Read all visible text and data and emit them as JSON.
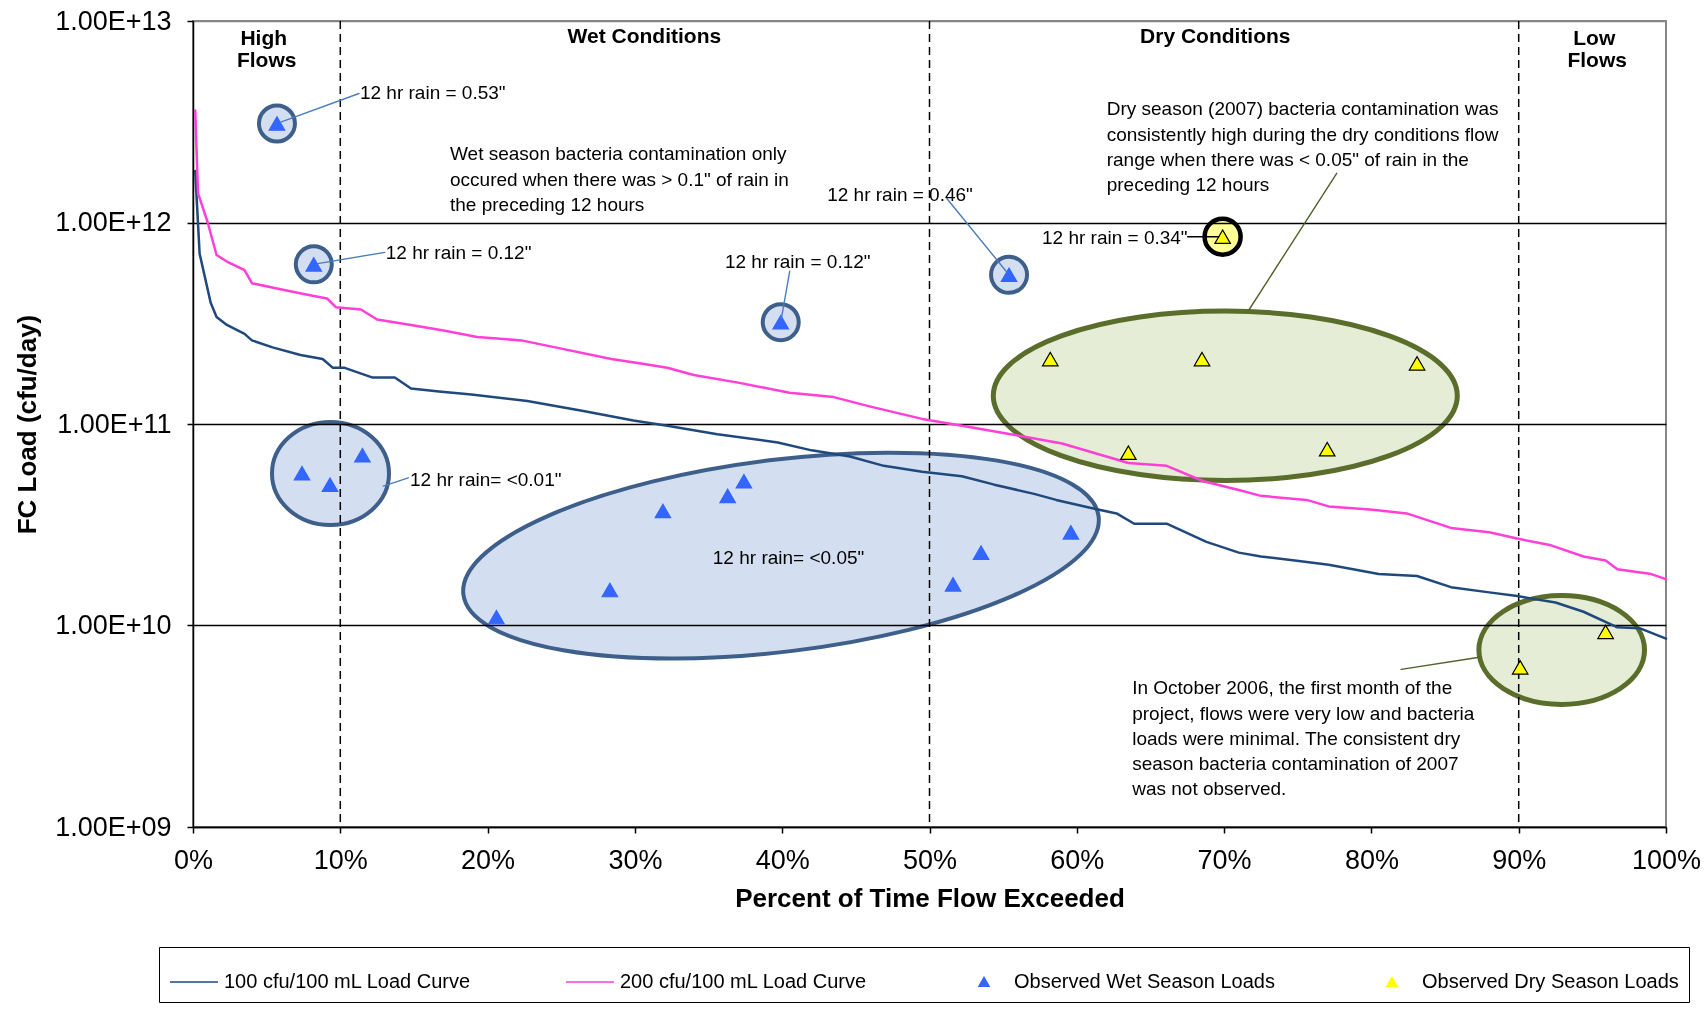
{
  "chart_data": {
    "type": "line",
    "xlabel": "Percent of Time Flow Exceeded",
    "ylabel": "FC Load (cfu/day)",
    "xlim": [
      0,
      100
    ],
    "xticks": [
      {
        "value": 0,
        "label": "0%"
      },
      {
        "value": 10,
        "label": "10%"
      },
      {
        "value": 20,
        "label": "20%"
      },
      {
        "value": 30,
        "label": "30%"
      },
      {
        "value": 40,
        "label": "40%"
      },
      {
        "value": 50,
        "label": "50%"
      },
      {
        "value": 60,
        "label": "60%"
      },
      {
        "value": 70,
        "label": "70%"
      },
      {
        "value": 80,
        "label": "80%"
      },
      {
        "value": 90,
        "label": "90%"
      },
      {
        "value": 100,
        "label": "100%"
      }
    ],
    "ylim": [
      1000000000.0,
      10000000000000.0
    ],
    "yticks": [
      {
        "value": 1000000000.0,
        "label": "1.00E+09"
      },
      {
        "value": 10000000000.0,
        "label": "1.00E+10"
      },
      {
        "value": 100000000000.0,
        "label": "1.00E+11"
      },
      {
        "value": 1000000000000.0,
        "label": "1.00E+12"
      },
      {
        "value": 10000000000000.0,
        "label": "1.00E+13"
      }
    ],
    "log": "y",
    "grid": "y",
    "legend": "bottom",
    "series": [
      {
        "name": "100 cfu/100 mL Load Curve",
        "color": "#1f497d",
        "x": [
          0.15,
          0.45,
          1.2,
          1.6,
          2.3,
          3.5,
          4.0,
          5.4,
          7.3,
          8.8,
          9.5,
          10.3,
          12.2,
          13.7,
          14.8,
          16.7,
          18.9,
          22.7,
          26.5,
          29.9,
          32.2,
          35.6,
          39.7,
          42.0,
          44.6,
          46.9,
          49.5,
          52.2,
          54.4,
          57.1,
          58.6,
          61.2,
          62.7,
          63.9,
          66.1,
          68.8,
          71.0,
          72.5,
          74.8,
          77.1,
          80.5,
          83.1,
          85.4,
          88.0,
          89.9,
          92.5,
          94.4,
          96.7,
          98.2,
          100
        ],
        "values": [
          1800000000000.0,
          700000000000.0,
          400000000000.0,
          340000000000.0,
          310000000000.0,
          280000000000.0,
          260000000000.0,
          240000000000.0,
          220000000000.0,
          210000000000.0,
          190000000000.0,
          190000000000.0,
          170000000000.0,
          170000000000.0,
          150000000000.0,
          145000000000.0,
          140000000000.0,
          130000000000.0,
          116000000000.0,
          104000000000.0,
          98000000000.0,
          89000000000.0,
          81000000000.0,
          74000000000.0,
          69000000000.0,
          62000000000.0,
          58000000000.0,
          55000000000.0,
          50000000000.0,
          45000000000.0,
          42000000000.0,
          38000000000.0,
          36000000000.0,
          32000000000.0,
          32000000000.0,
          26000000000.0,
          23000000000.0,
          22000000000.0,
          21000000000.0,
          20000000000.0,
          18000000000.0,
          17600000000.0,
          15500000000.0,
          14600000000.0,
          14000000000.0,
          13000000000.0,
          11700000000.0,
          9800000000.0,
          9700000000.0,
          8600000000.0
        ]
      },
      {
        "name": "200 cfu/100 mL Load Curve",
        "color": "#ff3fd8",
        "x": [
          0.15,
          0.34,
          1.0,
          1.6,
          2.3,
          3.5,
          4.0,
          5.7,
          7.6,
          9.1,
          9.7,
          11.4,
          12.5,
          14.8,
          17.1,
          19.3,
          22.3,
          24.6,
          28.4,
          30.3,
          32.2,
          34.0,
          37.1,
          40.5,
          43.5,
          46.0,
          49.5,
          52.9,
          55.9,
          59.0,
          62.3,
          63.5,
          66.1,
          68.6,
          71.0,
          72.5,
          75.6,
          77.1,
          80.1,
          82.4,
          85.4,
          88.0,
          89.9,
          92.2,
          94.4,
          95.9,
          96.7,
          99.0,
          100
        ],
        "values": [
          3600000000000.0,
          1400000000000.0,
          1000000000000.0,
          690000000000.0,
          640000000000.0,
          580000000000.0,
          500000000000.0,
          470000000000.0,
          440000000000.0,
          420000000000.0,
          380000000000.0,
          370000000000.0,
          330000000000.0,
          310000000000.0,
          290000000000.0,
          270000000000.0,
          260000000000.0,
          240000000000.0,
          210000000000.0,
          200000000000.0,
          190000000000.0,
          175000000000.0,
          160000000000.0,
          143000000000.0,
          136000000000.0,
          122000000000.0,
          106000000000.0,
          96000000000.0,
          88000000000.0,
          80000000000.0,
          68000000000.0,
          64000000000.0,
          62000000000.0,
          52000000000.0,
          47000000000.0,
          44000000000.0,
          42000000000.0,
          39000000000.0,
          37500000000.0,
          36000000000.0,
          30500000000.0,
          29000000000.0,
          27000000000.0,
          25000000000.0,
          22000000000.0,
          21000000000.0,
          19000000000.0,
          18000000000.0,
          17000000000.0
        ]
      },
      {
        "name": "Observed Wet Season Loads",
        "type": "scatter",
        "marker": "triangle",
        "color": "#3366ff",
        "x": [
          5.7,
          7.4,
          8.2,
          9.3,
          11.5,
          20.6,
          28.3,
          31.9,
          36.3,
          37.4,
          39.9,
          51.6,
          53.5,
          55.4,
          59.6
        ],
        "values": [
          3100000000000.0,
          57000000000.0,
          620000000000.0,
          50000000000.0,
          70000000000.0,
          11000000000.0,
          15000000000.0,
          37000000000.0,
          44000000000.0,
          52000000000.0,
          320000000000.0,
          16000000000.0,
          23000000000.0,
          550000000000.0,
          29000000000.0
        ]
      },
      {
        "name": "Observed Dry Season Loads",
        "type": "scatter",
        "marker": "triangle",
        "color": "#ffff00",
        "x": [
          58.2,
          63.5,
          68.5,
          69.9,
          77.0,
          83.1,
          90.1,
          95.9
        ],
        "values": [
          210000000000.0,
          72000000000.0,
          210000000000.0,
          850000000000.0,
          75000000000.0,
          200000000000.0,
          6200000000.0,
          9300000000.0
        ]
      }
    ],
    "ref_lines": [
      {
        "axis": "x",
        "value": 10,
        "line_style": "dashed",
        "color": "#000000"
      },
      {
        "axis": "x",
        "value": 50,
        "line_style": "dashed",
        "color": "#000000"
      },
      {
        "axis": "x",
        "value": 90,
        "line_style": "dashed",
        "color": "#000000"
      }
    ],
    "annotations": [
      "High Flows",
      "Wet Conditions",
      "Dry Conditions",
      "Low Flows",
      {
        "text": "12 hr rain = 0.53\"",
        "x": 5.7,
        "y": 3100000000000.0
      },
      {
        "text": "12 hr rain = 0.12\"",
        "x": 8.2,
        "y": 620000000000.0
      },
      {
        "text": "12 hr rain = 0.12\"",
        "x": 39.9,
        "y": 320000000000.0
      },
      {
        "text": "12 hr rain = 0.46\"",
        "x": 55.4,
        "y": 550000000000.0
      },
      {
        "text": "12 hr rain = 0.34\"",
        "x": 69.9,
        "y": 850000000000.0
      },
      "12 hr rain= <0.01\"",
      "12 hr rain= <0.05\"",
      "Wet season bacteria contamination only occured when there was > 0.1\" of rain in the preceding 12 hours",
      "Dry season (2007) bacteria contamination was consistently high during the dry conditions flow range when there was < 0.05\" of rain in the preceding 12 hours",
      "In October 2006, the first month of the project, flows were very low and bacteria loads were minimal. The consistent dry season bacteria contamination of 2007 was not observed."
    ]
  }
}
